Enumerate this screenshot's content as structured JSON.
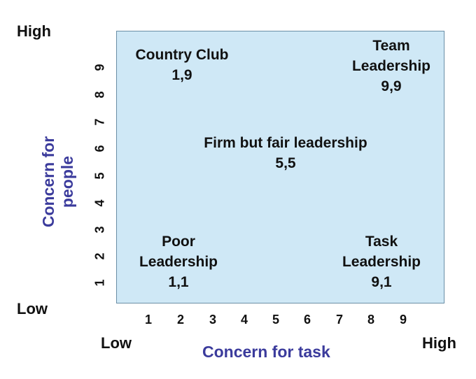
{
  "axis": {
    "y_title": "Concern for people",
    "x_title": "Concern for task",
    "y_high": "High",
    "y_low": "Low",
    "x_low": "Low",
    "x_high": "High",
    "y_ticks": [
      "9",
      "8",
      "7",
      "6",
      "5",
      "4",
      "3",
      "2",
      "1"
    ],
    "x_ticks": [
      "1",
      "2",
      "3",
      "4",
      "5",
      "6",
      "7",
      "8",
      "9"
    ]
  },
  "styles": [
    "Country Club",
    "Team Leadership",
    "Firm but fair leadership",
    "Poor Leadership",
    "Task Leadership"
  ],
  "quadrants": {
    "country_club": {
      "label": "Country Club",
      "coords": "1,9"
    },
    "team": {
      "label_line1": "Team",
      "label_line2": "Leadership",
      "coords": "9,9"
    },
    "middle": {
      "label": "Firm but fair leadership",
      "coords": "5,5"
    },
    "poor": {
      "label_line1": "Poor",
      "label_line2": "Leadership",
      "coords": "1,1"
    },
    "task": {
      "label_line1": "Task",
      "label_line2": "Leadership",
      "coords": "9,1"
    }
  },
  "colors": {
    "grid_fill": "#cfe8f6",
    "grid_border": "#6a8ea6",
    "axis_title": "#3b3b9c",
    "text": "#111111"
  }
}
